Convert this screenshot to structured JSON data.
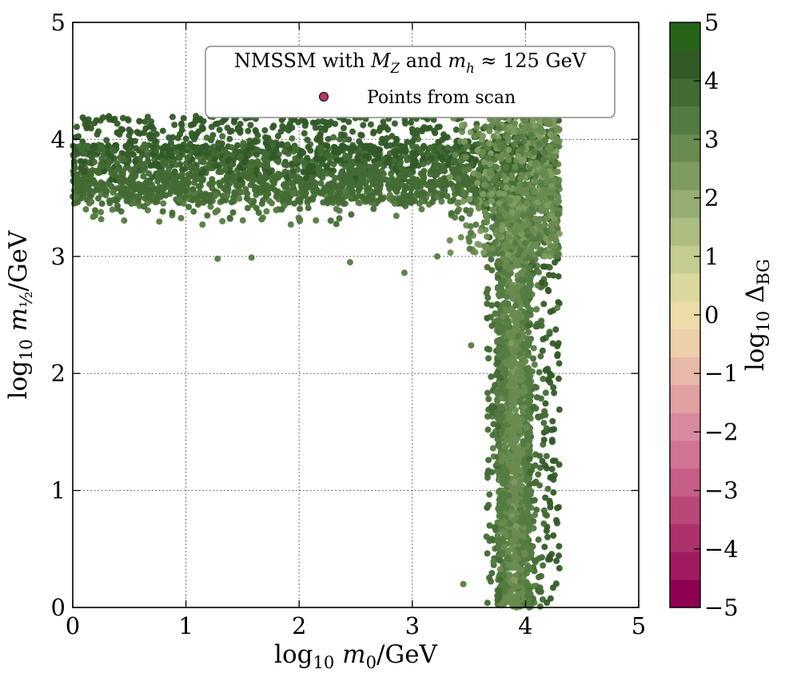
{
  "chart_data": {
    "type": "scatter",
    "title": "",
    "xlabel": "log₁₀ m₀/GeV",
    "ylabel": "log₁₀ m½/GeV",
    "xlim": [
      0,
      5
    ],
    "ylim": [
      0,
      5
    ],
    "xticks": [
      "0",
      "1",
      "2",
      "3",
      "4",
      "5"
    ],
    "yticks": [
      "0",
      "1",
      "2",
      "3",
      "4",
      "5"
    ],
    "grid": true,
    "legend": {
      "location": "top-right",
      "title": "NMSSM with M_Z and m_h ≈ 125 GeV",
      "entries": [
        {
          "label": "Points from scan",
          "color": "#b03868"
        }
      ]
    },
    "colorbar": {
      "label": "log₁₀ Δ_BG",
      "range": [
        -5,
        5
      ],
      "ticks": [
        "5",
        "4",
        "3",
        "2",
        "1",
        "0",
        "−1",
        "−2",
        "−3",
        "−4",
        "−5"
      ],
      "colors": [
        "#8e0152",
        "#9f1a5f",
        "#ad306b",
        "#ba4778",
        "#c55d86",
        "#d07493",
        "#d98aa0",
        "#e1a1a1",
        "#e8b8a8",
        "#edcfa9",
        "#ecdca9",
        "#dad89f",
        "#c5cc91",
        "#adbd81",
        "#95ad70",
        "#7e9c5f",
        "#698b4f",
        "#547b41",
        "#426a33",
        "#315a27",
        "#276419"
      ]
    },
    "series": [
      {
        "name": "Points from scan",
        "regions": [
          {
            "name": "horizontal band",
            "x_range": [
              0.0,
              4.3
            ],
            "y_range": [
              2.95,
              4.2
            ],
            "core_y": [
              3.45,
              3.95
            ],
            "log10_delta_bg": [
              3.0,
              4.5
            ]
          },
          {
            "name": "vertical band",
            "x_range": [
              3.6,
              4.3
            ],
            "y_range": [
              0.0,
              3.5
            ],
            "core_x": [
              3.75,
              4.05
            ],
            "log10_delta_bg": [
              2.5,
              4.5
            ]
          },
          {
            "name": "corner region",
            "x_range": [
              3.3,
              4.3
            ],
            "y_range": [
              3.0,
              4.2
            ],
            "log10_delta_bg": [
              2.5,
              3.5
            ]
          }
        ],
        "outliers": [
          {
            "x": 1.28,
            "y": 2.98
          },
          {
            "x": 1.58,
            "y": 2.99
          },
          {
            "x": 2.45,
            "y": 2.95
          },
          {
            "x": 2.93,
            "y": 2.86
          },
          {
            "x": 3.45,
            "y": 0.2
          },
          {
            "x": 3.52,
            "y": 2.24
          },
          {
            "x": 4.28,
            "y": 2.56
          },
          {
            "x": 3.22,
            "y": 3.0
          }
        ]
      }
    ]
  }
}
